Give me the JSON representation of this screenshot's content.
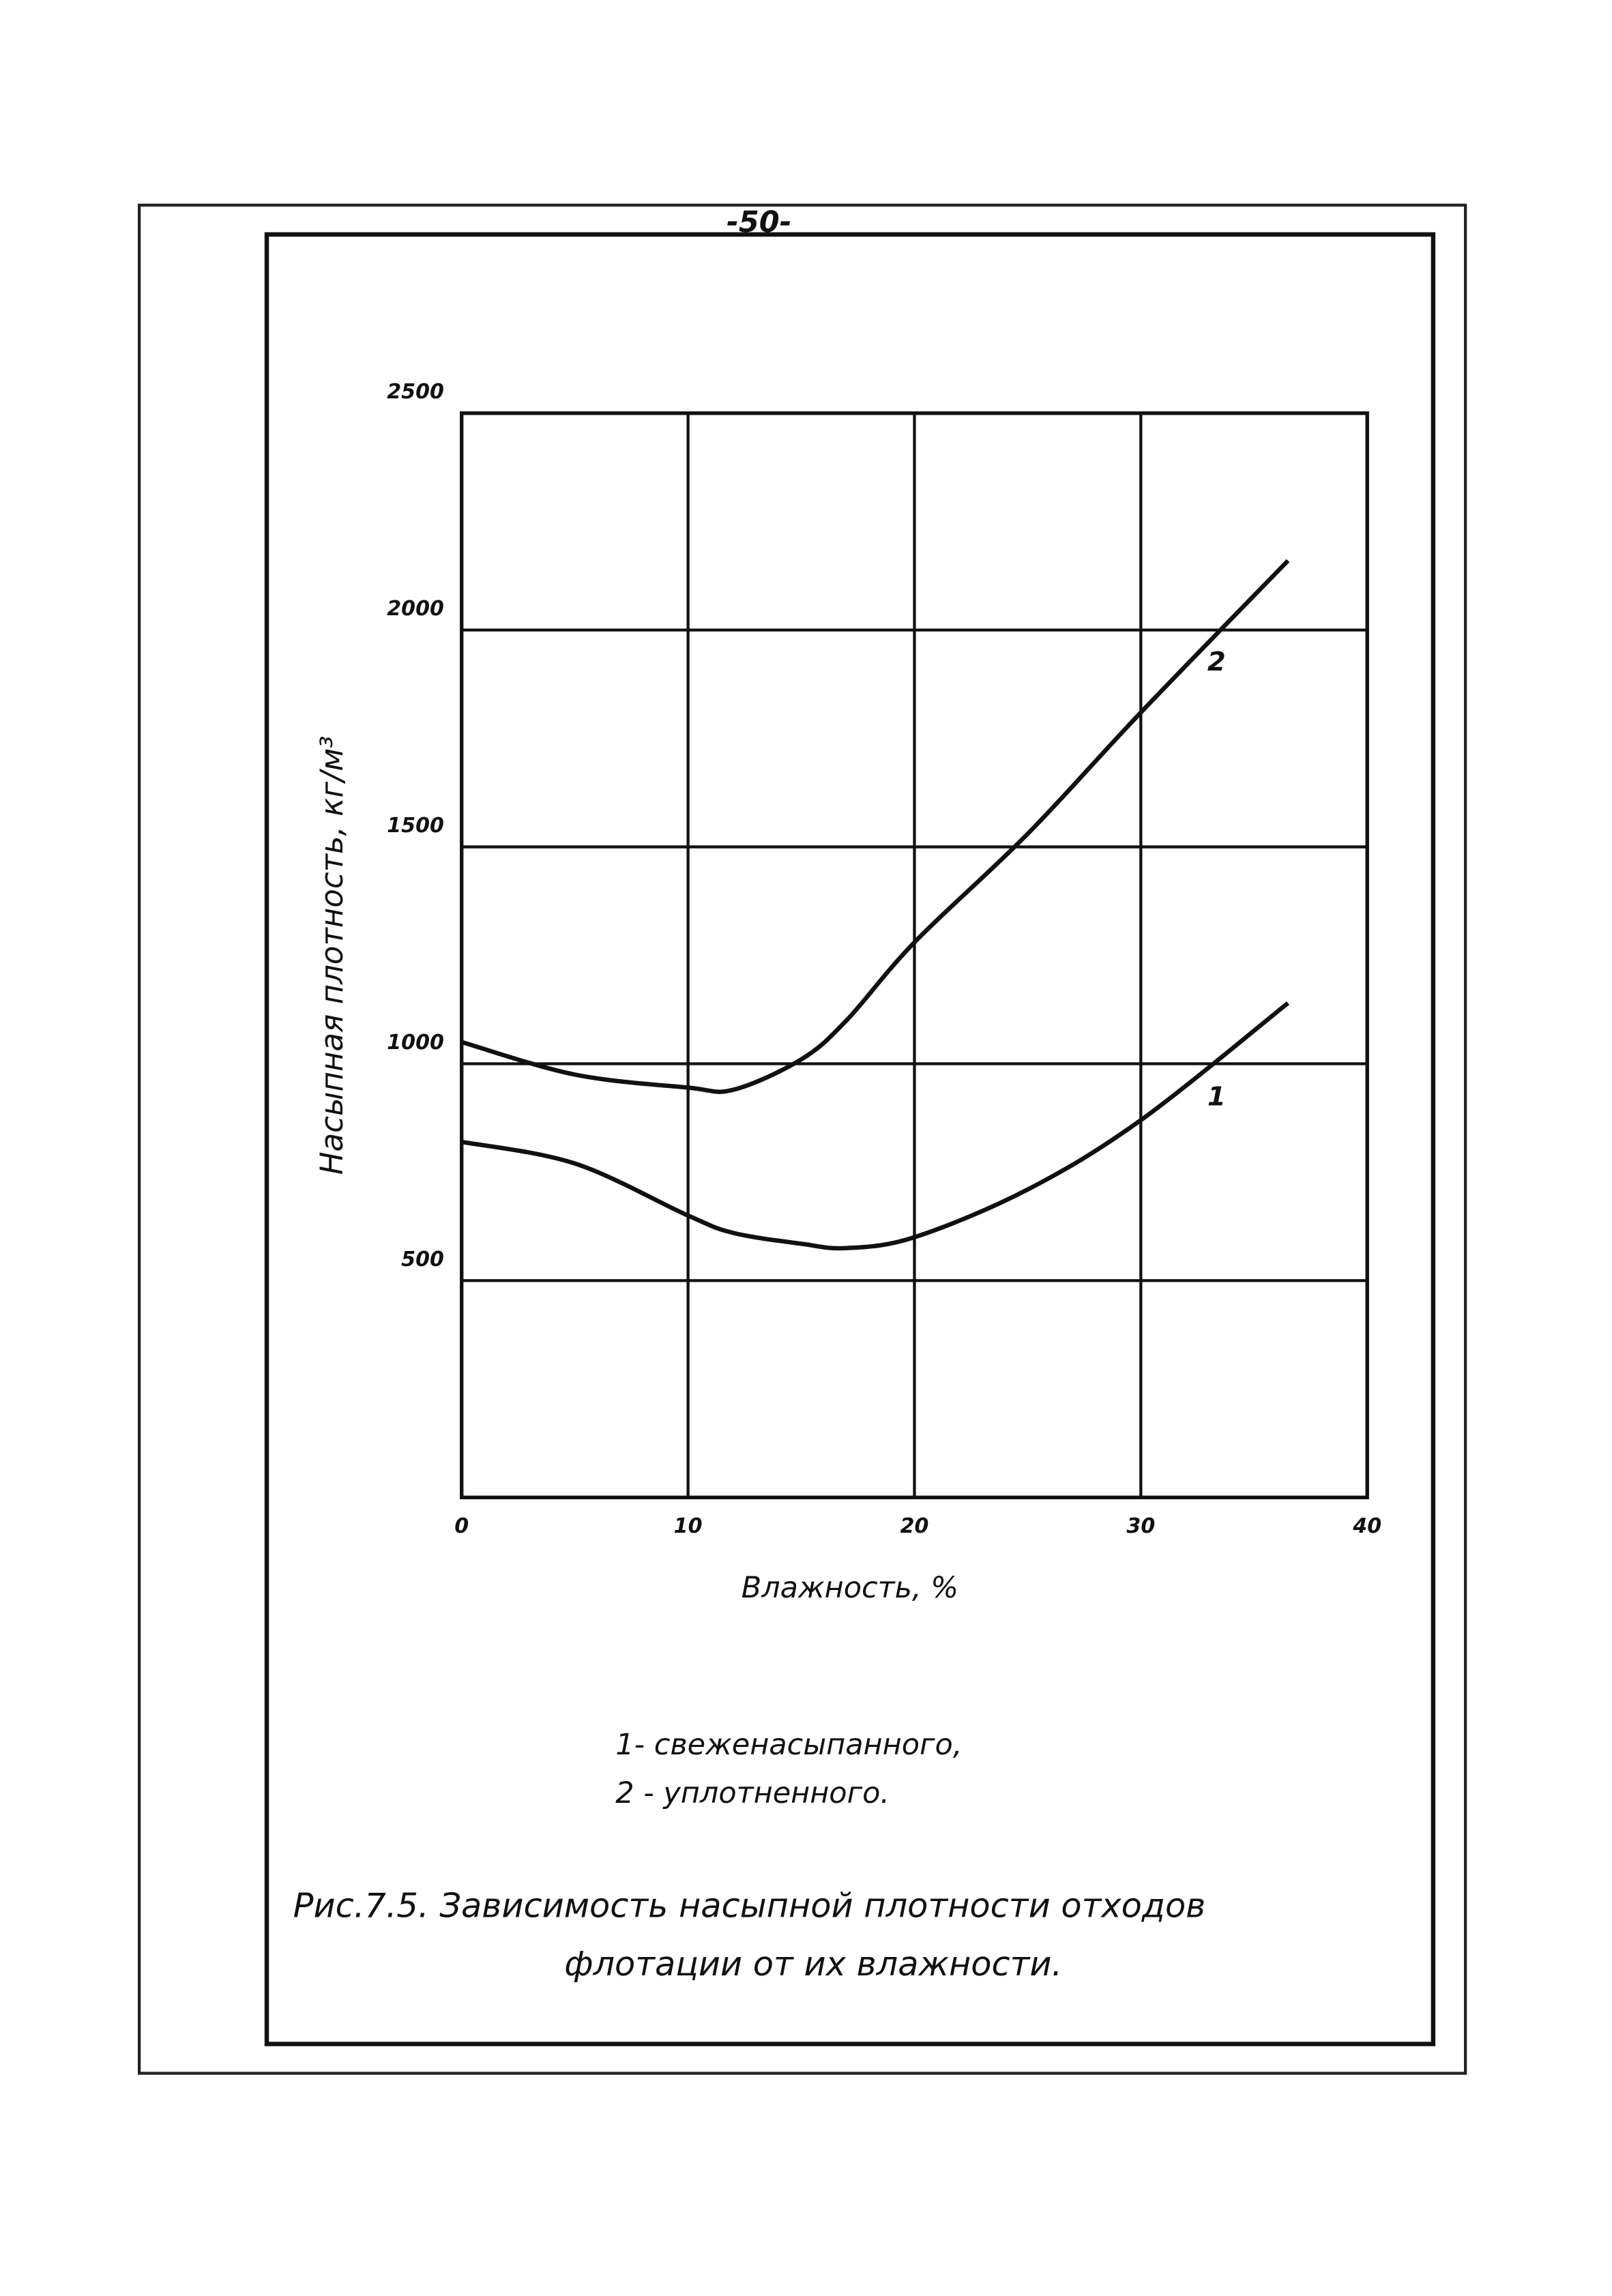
{
  "page_number": "-50-",
  "chart_data": {
    "type": "line",
    "x_label": "Влажность, %",
    "y_label": "Насыпная плотность, кг/м³",
    "x": [
      0,
      5,
      10,
      12,
      15,
      17,
      20,
      25,
      30,
      36.5
    ],
    "series": [
      {
        "name": "1",
        "color": "#111111",
        "values": [
          820,
          770,
          650,
          610,
          585,
          575,
          600,
          710,
          870,
          1140
        ]
      },
      {
        "name": "2",
        "color": "#111111",
        "values": [
          1050,
          975,
          945,
          940,
          1010,
          1100,
          1280,
          1530,
          1810,
          2160
        ]
      }
    ],
    "xlim": [
      0,
      40
    ],
    "xticks": [
      0,
      10,
      20,
      30,
      40
    ],
    "ylim": [
      0,
      2500
    ],
    "yticks": [
      500,
      1000,
      1500,
      2000,
      2500
    ],
    "grid": true,
    "legend_text": [
      "1- свеженасыпанного,",
      "2 - уплотненного."
    ],
    "caption": [
      "Рис.7.5. Зависимость насыпной плотности отходов",
      "флотации от их влажности."
    ]
  }
}
